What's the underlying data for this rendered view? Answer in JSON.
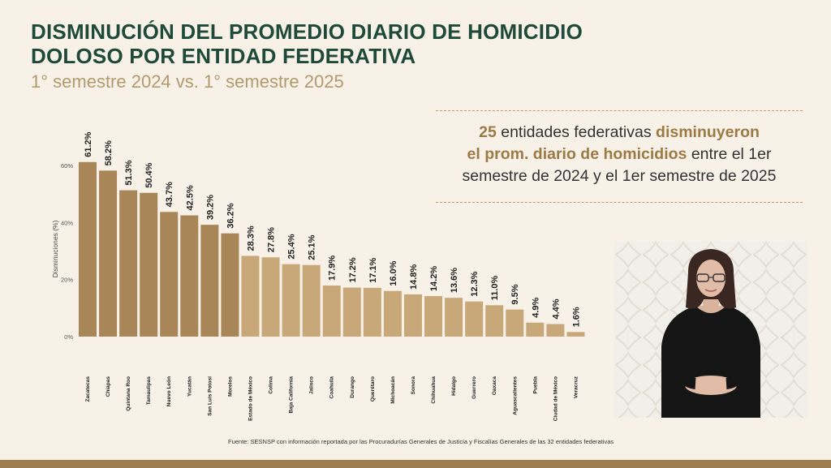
{
  "title_line1": "DISMINUCIÓN DEL PROMEDIO DIARIO DE HOMICIDIO",
  "title_line2": "DOLOSO POR ENTIDAD FEDERATIVA",
  "subtitle": "1° semestre 2024 vs. 1° semestre 2025",
  "callout": {
    "number": "25",
    "t1": " entidades federativas ",
    "h1": "disminuyeron",
    "h2": "el prom. diario de homicidios",
    "t2": " entre el 1er",
    "t3": "semestre de 2024 y el 1er semestre de 2025"
  },
  "source": "Fuente: SESNSP con información reportada por las Procuradurías Generales de Justicia y Fiscalías Generales de las 32 entidades federativas",
  "colors": {
    "bar_dark": "#a88658",
    "bar_light": "#c8a878",
    "title": "#1f4a3a",
    "accent": "#9c7a45"
  },
  "chart_data": {
    "type": "bar",
    "title": "DISMINUCIÓN DEL PROMEDIO DIARIO DE HOMICIDIO DOLOSO POR ENTIDAD FEDERATIVA",
    "subtitle": "1° semestre 2024 vs. 1° semestre 2025",
    "ylabel": "Disminuciones (%)",
    "xlabel": "",
    "ylim": [
      0,
      60
    ],
    "yticks": [
      0,
      20,
      40,
      60
    ],
    "ytick_labels": [
      "0%",
      "20%",
      "40%",
      "60%"
    ],
    "grid": false,
    "categories": [
      "Zacatecas",
      "Chiapas",
      "Quintana Roo",
      "Tamaulipas",
      "Nuevo León",
      "Yucatán",
      "San Luis Potosí",
      "Morelos",
      "Estado de México",
      "Colima",
      "Baja California",
      "Jalisco",
      "Coahuila",
      "Durango",
      "Querétaro",
      "Michoacán",
      "Sonora",
      "Chihuahua",
      "Hidalgo",
      "Guerrero",
      "Oaxaca",
      "Aguascalientes",
      "Puebla",
      "Ciudad de México",
      "Veracruz"
    ],
    "values": [
      61.2,
      58.2,
      51.3,
      50.4,
      43.7,
      42.5,
      39.2,
      36.2,
      28.3,
      27.8,
      25.4,
      25.1,
      17.9,
      17.2,
      17.1,
      16.0,
      14.8,
      14.2,
      13.6,
      12.3,
      11.0,
      9.5,
      4.9,
      4.4,
      1.6
    ],
    "value_labels": [
      "61.2%",
      "58.2%",
      "51.3%",
      "50.4%",
      "43.7%",
      "42.5%",
      "39.2%",
      "36.2%",
      "28.3%",
      "27.8%",
      "25.4%",
      "25.1%",
      "17.9%",
      "17.2%",
      "17.1%",
      "16.0%",
      "14.8%",
      "14.2%",
      "13.6%",
      "12.3%",
      "11.0%",
      "9.5%",
      "4.9%",
      "4.4%",
      "1.6%"
    ]
  }
}
